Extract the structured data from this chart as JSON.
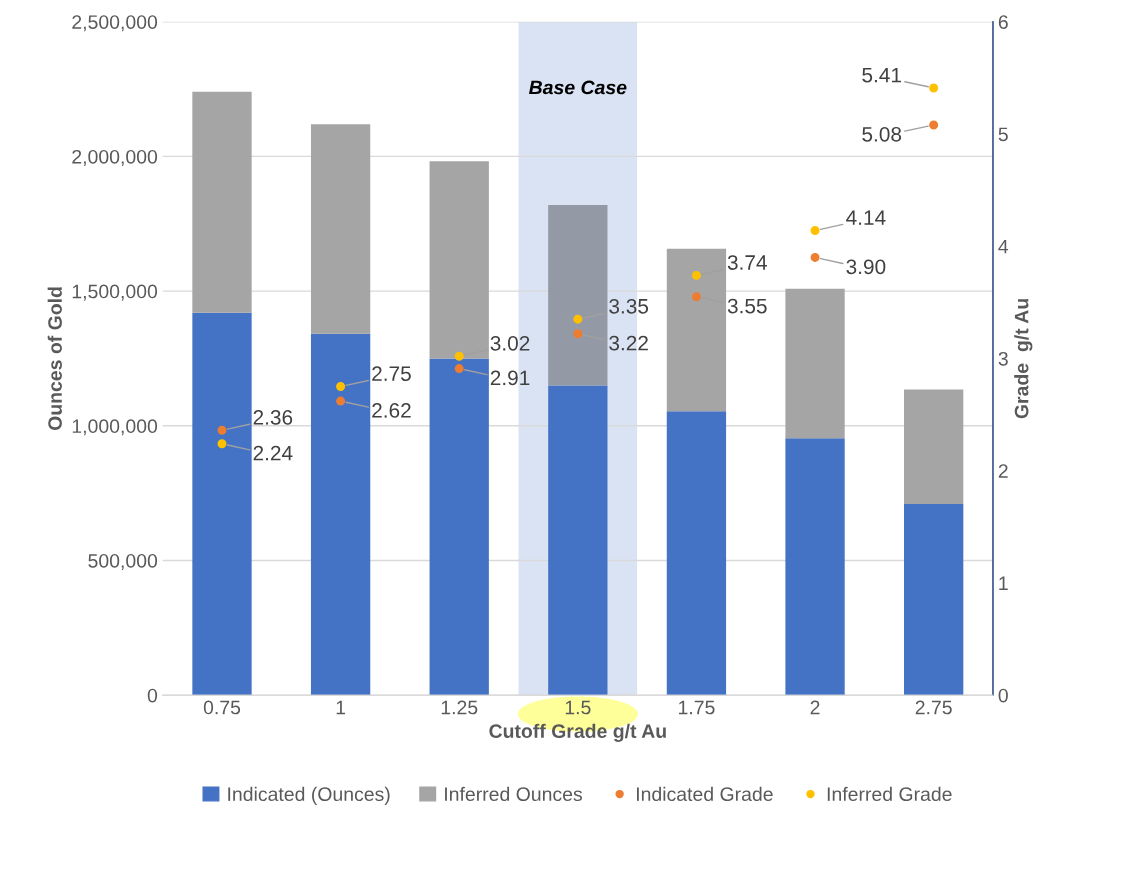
{
  "chart_data": {
    "type": "bar",
    "stacked": true,
    "xlabel": "Cutoff Grade g/t Au",
    "ylabel": "Ounces of Gold",
    "y2label": "Grade  g/t Au",
    "categories": [
      "0.75",
      "1",
      "1.25",
      "1.5",
      "1.75",
      "2",
      "2.75"
    ],
    "series": [
      {
        "name": "Indicated (Ounces)",
        "color": "#4472c4",
        "values": [
          1420000,
          1342000,
          1250000,
          1150000,
          1054000,
          954000,
          710000
        ]
      },
      {
        "name": "Inferred Ounces",
        "color": "#a5a5a5",
        "colors": [
          "#a5a5a5",
          "#a5a5a5",
          "#a5a5a5",
          "#939aa5",
          "#a5a5a5",
          "#a5a5a5",
          "#a5a5a5"
        ],
        "values": [
          820000,
          777000,
          732000,
          670000,
          603000,
          555000,
          425000
        ]
      },
      {
        "name": "Indicated Grade",
        "type": "scatter",
        "axis": "y2",
        "color": "#ed7d31",
        "values": [
          2.36,
          2.62,
          2.91,
          3.22,
          3.55,
          3.9,
          5.08
        ],
        "value_labels": [
          "2.36",
          "2.62",
          "2.91",
          "3.22",
          "3.55",
          "3.90",
          "5.08"
        ]
      },
      {
        "name": "Inferred Grade",
        "type": "scatter",
        "axis": "y2",
        "color": "#ffc000",
        "values": [
          2.24,
          2.75,
          3.02,
          3.35,
          3.74,
          4.14,
          5.41
        ],
        "value_labels": [
          "2.24",
          "2.75",
          "3.02",
          "3.35",
          "3.74",
          "4.14",
          "5.41"
        ]
      }
    ],
    "ylim": [
      0,
      2500000
    ],
    "yticks": [
      {
        "value": 0,
        "label": "0"
      },
      {
        "value": 500000,
        "label": "500,000"
      },
      {
        "value": 1000000,
        "label": "1,000,000"
      },
      {
        "value": 1500000,
        "label": "1,500,000"
      },
      {
        "value": 2000000,
        "label": "2,000,000"
      },
      {
        "value": 2500000,
        "label": "2,500,000"
      }
    ],
    "y2lim": [
      0,
      6
    ],
    "y2ticks": [
      0,
      1,
      2,
      3,
      4,
      5,
      6
    ],
    "bands": [
      {
        "axis": "x",
        "from": "1.5",
        "to": "1.5",
        "label": "Base Case",
        "color": "#dae3f3"
      }
    ],
    "grid": "y",
    "legend": "bottom",
    "marker": "circle"
  }
}
